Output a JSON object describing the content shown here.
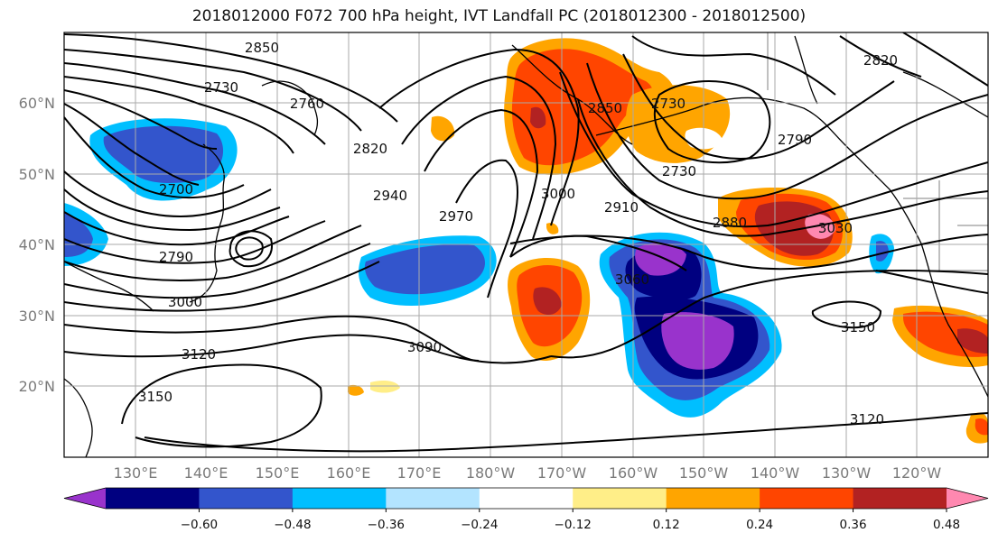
{
  "title": "2018012000 F072 700 hPa height, IVT Landfall PC (2018012300 - 2018012500)",
  "map": {
    "lat_ticks": [
      "60°N",
      "50°N",
      "40°N",
      "30°N",
      "20°N"
    ],
    "lon_ticks": [
      "130°E",
      "140°E",
      "150°E",
      "160°E",
      "170°E",
      "180°W",
      "170°W",
      "160°W",
      "150°W",
      "140°W",
      "130°W",
      "120°W"
    ],
    "contour_labels": [
      "2850",
      "2730",
      "2760",
      "2820",
      "2700",
      "2940",
      "2970",
      "3000",
      "2790",
      "2880",
      "3030",
      "3060",
      "3150",
      "3120",
      "3090",
      "2910",
      "2730",
      "2790",
      "2820",
      "2850",
      "3000",
      "3120",
      "3150",
      "2730"
    ]
  },
  "colorbar": {
    "levels": [
      "−0.60",
      "−0.48",
      "−0.36",
      "−0.24",
      "−0.12",
      "0.12",
      "0.24",
      "0.36",
      "0.48",
      "0.60"
    ],
    "colors": [
      "#9933cc",
      "#000080",
      "#3355cc",
      "#00bfff",
      "#b3e4ff",
      "#ffffff",
      "#ffee88",
      "#ffa500",
      "#ff4500",
      "#b22222",
      "#ff88b0"
    ]
  }
}
